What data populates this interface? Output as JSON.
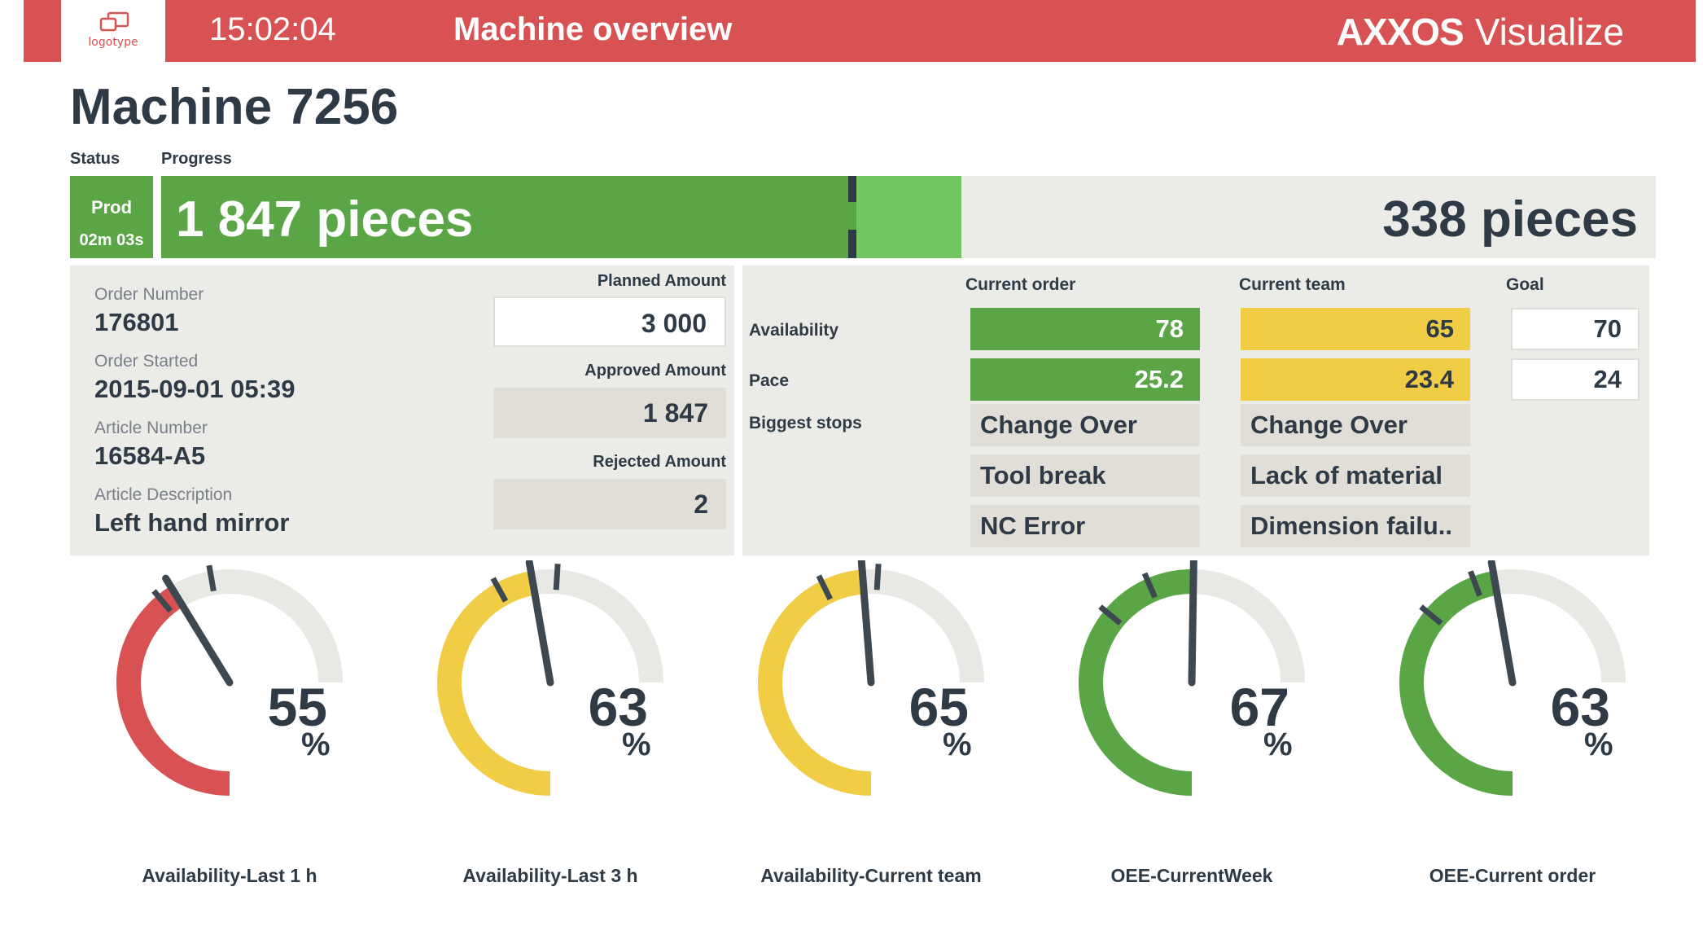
{
  "header": {
    "logo_text": "logotype",
    "clock": "15:02:04",
    "title": "Machine overview",
    "brand_bold": "AXXOS",
    "brand_light": "Visualize"
  },
  "machine": {
    "title": "Machine 7256",
    "status_label": "Status",
    "progress_label": "Progress",
    "status_value": "Prod",
    "status_time": "02m 03s",
    "produced_text": "1 847 pieces",
    "remaining_text": "338 pieces",
    "progress_fraction": 0.465,
    "extra_fraction": 0.535
  },
  "order": {
    "order_number_label": "Order Number",
    "order_number": "176801",
    "order_started_label": "Order Started",
    "order_started": "2015-09-01 05:39",
    "article_number_label": "Article Number",
    "article_number": "16584-A5",
    "article_desc_label": "Article Description",
    "article_desc": "Left hand mirror",
    "planned_label": "Planned Amount",
    "planned": "3 000",
    "approved_label": "Approved Amount",
    "approved": "1 847",
    "rejected_label": "Rejected Amount",
    "rejected": "2"
  },
  "performance": {
    "col_current_order": "Current order",
    "col_current_team": "Current team",
    "col_goal": "Goal",
    "availability_label": "Availability",
    "pace_label": "Pace",
    "stops_label": "Biggest stops",
    "availability_order": "78",
    "availability_team": "65",
    "availability_goal": "70",
    "pace_order": "25.2",
    "pace_team": "23.4",
    "pace_goal": "24",
    "stops_order": [
      "Change Over",
      "Tool break",
      "NC Error"
    ],
    "stops_team": [
      "Change Over",
      "Lack of material",
      "Dimension failu.."
    ]
  },
  "colors": {
    "red": "#d95253",
    "yellow": "#f1cc45",
    "green": "#5aa647",
    "track": "#e8e8e4",
    "needle": "#3d4851"
  },
  "gauges": [
    {
      "label": "Availability-Last 1 h",
      "value": 55,
      "display": "55",
      "unit": "%",
      "color": "red",
      "ticks": [
        52,
        63
      ]
    },
    {
      "label": "Availability-Last 3 h",
      "value": 63,
      "display": "63",
      "unit": "%",
      "color": "yellow",
      "ticks": [
        56,
        68
      ]
    },
    {
      "label": "Availability-Current team",
      "value": 65,
      "display": "65",
      "unit": "%",
      "color": "yellow",
      "ticks": [
        57,
        68
      ]
    },
    {
      "label": "OEE-CurrentWeek",
      "value": 67,
      "display": "67",
      "unit": "%",
      "color": "green",
      "ticks": [
        48,
        58
      ]
    },
    {
      "label": "OEE-Current order",
      "value": 63,
      "display": "63",
      "unit": "%",
      "color": "green",
      "ticks": [
        48,
        59
      ]
    }
  ]
}
